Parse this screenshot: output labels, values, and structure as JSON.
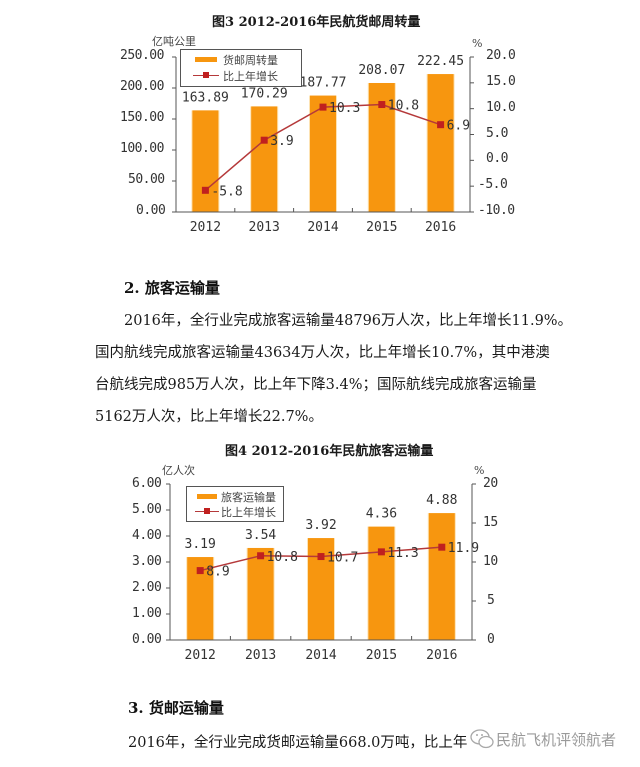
{
  "chart1": {
    "title": "图3 2012-2016年民航货邮周转量",
    "left_unit": "亿吨公里",
    "right_unit": "%",
    "left_ticks": [
      "250.00",
      "200.00",
      "150.00",
      "100.00",
      "50.00",
      "0.00"
    ],
    "right_ticks": [
      "20.0",
      "15.0",
      "10.0",
      "5.0",
      "0.0",
      "-5.0",
      "-10.0"
    ],
    "legend": {
      "bar": "货邮周转量",
      "line": "比上年增长"
    }
  },
  "chart2": {
    "title": "图4 2012-2016年民航旅客运输量",
    "left_unit": "亿人次",
    "right_unit": "%",
    "left_ticks": [
      "6.00",
      "5.00",
      "4.00",
      "3.00",
      "2.00",
      "1.00",
      "0.00"
    ],
    "right_ticks": [
      "20",
      "15",
      "10",
      "5",
      "0"
    ],
    "legend": {
      "bar": "旅客运输量",
      "line": "比上年增长"
    }
  },
  "chart_data": [
    {
      "type": "bar",
      "title": "图3 2012-2016年民航货邮周转量",
      "categories": [
        "2012",
        "2013",
        "2014",
        "2015",
        "2016"
      ],
      "series": [
        {
          "name": "货邮周转量",
          "type": "bar",
          "axis": "left",
          "values": [
            163.89,
            170.29,
            187.77,
            208.07,
            222.45
          ]
        },
        {
          "name": "比上年增长",
          "type": "line",
          "axis": "right",
          "values": [
            -5.8,
            3.9,
            10.3,
            10.8,
            6.9
          ]
        }
      ],
      "ylabel": "亿吨公里",
      "ylim": [
        0,
        250
      ],
      "y2label": "%",
      "y2lim": [
        -10,
        20
      ],
      "legend_position": "upper-left",
      "grid": false,
      "colors": {
        "bar": "#f7960f",
        "line": "#b5393a",
        "marker": "#c0201f"
      }
    },
    {
      "type": "bar",
      "title": "图4 2012-2016年民航旅客运输量",
      "categories": [
        "2012",
        "2013",
        "2014",
        "2015",
        "2016"
      ],
      "series": [
        {
          "name": "旅客运输量",
          "type": "bar",
          "axis": "left",
          "values": [
            3.19,
            3.54,
            3.92,
            4.36,
            4.88
          ]
        },
        {
          "name": "比上年增长",
          "type": "line",
          "axis": "right",
          "values": [
            8.9,
            10.8,
            10.7,
            11.3,
            11.9
          ]
        }
      ],
      "ylabel": "亿人次",
      "ylim": [
        0,
        6
      ],
      "y2label": "%",
      "y2lim": [
        0,
        20
      ],
      "legend_position": "upper-left",
      "grid": false,
      "colors": {
        "bar": "#f7960f",
        "line": "#b5393a",
        "marker": "#c0201f"
      }
    }
  ],
  "section2": {
    "heading": "2. 旅客运输量",
    "lines": [
      "2016年，全行业完成旅客运输量48796万人次，比上年增长11.9%。",
      "国内航线完成旅客运输量43634万人次，比上年增长10.7%，其中港澳",
      "台航线完成985万人次，比上年下降3.4%；国际航线完成旅客运输量",
      "5162万人次，比上年增长22.7%。"
    ]
  },
  "section3": {
    "heading": "3. 货邮运输量",
    "lines": [
      "2016年，全行业完成货邮运输量668.0万吨，比上年"
    ]
  },
  "watermark": {
    "text": "民航飞机评领航者",
    "icon": "wechat-icon"
  }
}
